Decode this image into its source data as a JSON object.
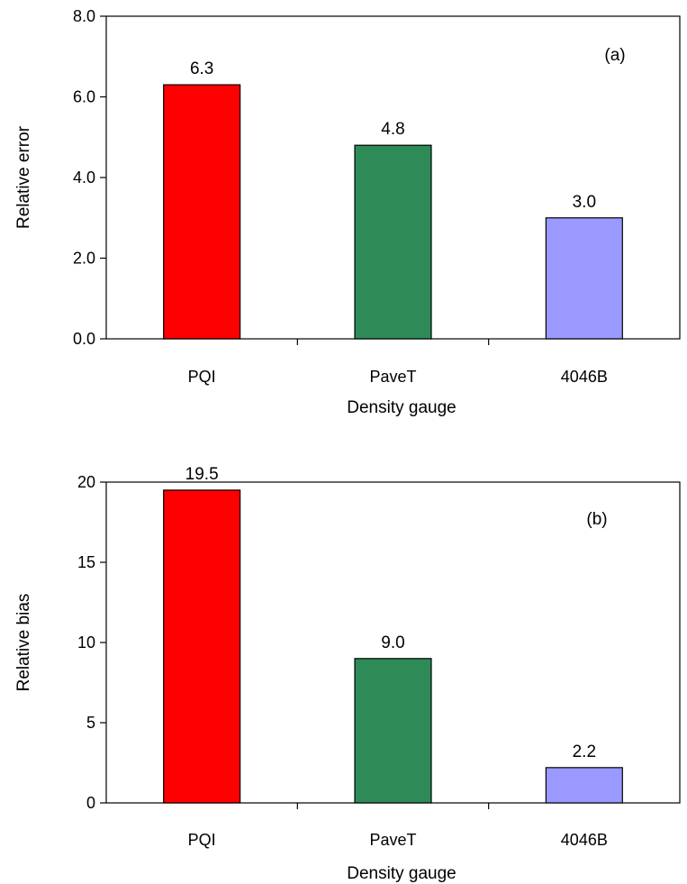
{
  "chart_data": [
    {
      "type": "bar",
      "panel_label": "(a)",
      "categories": [
        "PQI",
        "PaveT",
        "4046B"
      ],
      "values": [
        6.3,
        4.8,
        3.0
      ],
      "data_labels": [
        "6.3",
        "4.8",
        "3.0"
      ],
      "colors": [
        "#ff0000",
        "#2e8b57",
        "#9999ff"
      ],
      "xlabel": "Density gauge",
      "ylabel": "Relative error",
      "ylim": [
        0,
        8
      ],
      "yticks": [
        0,
        2,
        4,
        6,
        8
      ],
      "ytick_labels": [
        "0.0",
        "2.0",
        "4.0",
        "6.0",
        "8.0"
      ],
      "grid": false,
      "legend": "none"
    },
    {
      "type": "bar",
      "panel_label": "(b)",
      "categories": [
        "PQI",
        "PaveT",
        "4046B"
      ],
      "values": [
        19.5,
        9.0,
        2.2
      ],
      "data_labels": [
        "19.5",
        "9.0",
        "2.2"
      ],
      "colors": [
        "#ff0000",
        "#2e8b57",
        "#9999ff"
      ],
      "xlabel": "Density gauge",
      "ylabel": "Relative bias",
      "ylim": [
        0,
        20
      ],
      "yticks": [
        0,
        5,
        10,
        15,
        20
      ],
      "ytick_labels": [
        "0",
        "5",
        "10",
        "15",
        "20"
      ],
      "grid": false,
      "legend": "none"
    }
  ]
}
